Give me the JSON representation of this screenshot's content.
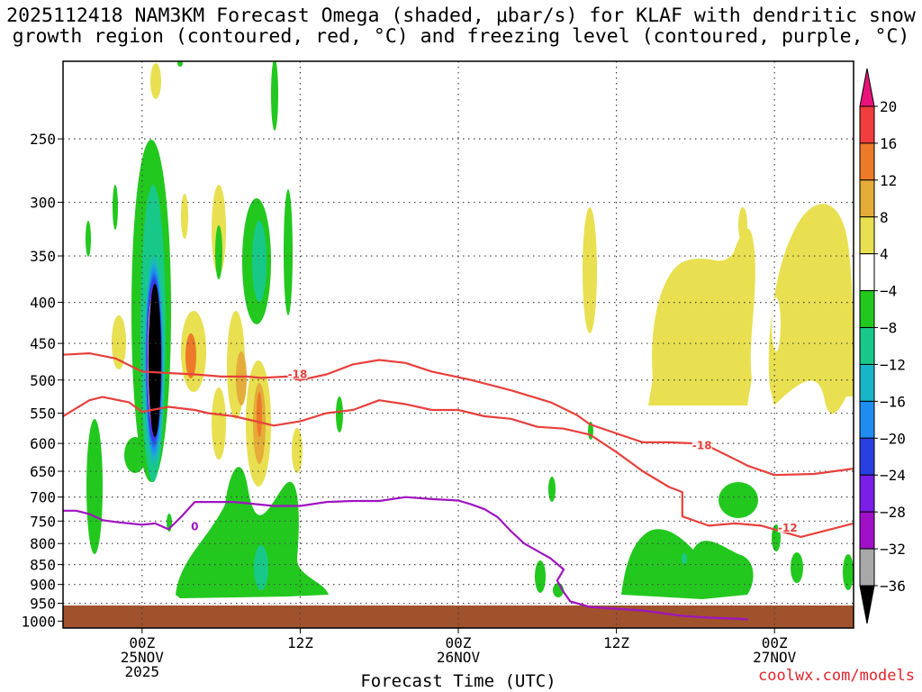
{
  "title": {
    "line1": "2025112418 NAM3KM Forecast Omega (shaded, μbar/s) for KLAF with dendritic snow",
    "line2": "growth region (contoured, red, °C) and freezing level (contoured, purple, °C)"
  },
  "credit": "coolwx.com/models",
  "chart_data": {
    "type": "heatmap",
    "xlabel": "Forecast Time (UTC)",
    "ylabel": "",
    "x_ticks": [
      {
        "label": "00Z",
        "sub": "25NOV",
        "sub2": "2025",
        "hour": 6
      },
      {
        "label": "12Z",
        "sub": "",
        "sub2": "",
        "hour": 18
      },
      {
        "label": "00Z",
        "sub": "26NOV",
        "sub2": "",
        "hour": 30
      },
      {
        "label": "12Z",
        "sub": "",
        "sub2": "",
        "hour": 42
      },
      {
        "label": "00Z",
        "sub": "27NOV",
        "sub2": "",
        "hour": 54
      }
    ],
    "xlim": [
      0,
      60
    ],
    "y_ticks": [
      250,
      300,
      350,
      400,
      450,
      500,
      550,
      600,
      650,
      700,
      750,
      800,
      850,
      900,
      950,
      1000
    ],
    "ylim_hPa": [
      200,
      1020
    ],
    "y_scale": "log-pressure",
    "grid": true,
    "colorbar": {
      "labels": [
        "20",
        "16",
        "12",
        "8",
        "4",
        "−4",
        "−8",
        "−12",
        "−16",
        "−20",
        "−24",
        "−28",
        "−32",
        "−36"
      ],
      "colors": [
        "#e8127a",
        "#f03c3c",
        "#ec7a28",
        "#e4ac38",
        "#e8e050",
        "#ffffff",
        "#22c81e",
        "#18c888",
        "#1ab4c8",
        "#1e8cf0",
        "#2840e0",
        "#7a1ee8",
        "#a010c8",
        "#a8a8a8",
        "#000000"
      ]
    },
    "contour_labels": [
      {
        "text": "-18",
        "color": "#e8403c"
      },
      {
        "text": "-18",
        "color": "#e8403c"
      },
      {
        "text": "-12",
        "color": "#e8403c"
      },
      {
        "text": "0",
        "color": "#a014c0"
      }
    ],
    "series": [
      {
        "name": "-18",
        "color": "#e8403c",
        "points": [
          [
            0,
            465
          ],
          [
            2,
            463
          ],
          [
            4,
            470
          ],
          [
            6,
            488
          ],
          [
            8,
            490
          ],
          [
            10,
            492
          ],
          [
            12,
            495
          ],
          [
            14,
            495
          ],
          [
            15,
            497
          ],
          [
            17,
            495
          ],
          [
            18,
            500
          ],
          [
            20,
            492
          ],
          [
            22,
            478
          ],
          [
            24,
            472
          ],
          [
            26,
            476
          ],
          [
            28,
            488
          ],
          [
            31,
            500
          ],
          [
            34,
            515
          ],
          [
            37,
            533
          ],
          [
            39,
            553
          ],
          [
            40,
            568
          ],
          [
            42,
            583
          ],
          [
            44,
            598
          ],
          [
            46,
            598
          ],
          [
            48,
            600
          ],
          [
            49,
            605
          ],
          [
            51,
            628
          ],
          [
            52,
            640
          ],
          [
            54,
            657
          ],
          [
            57,
            655
          ],
          [
            60,
            645
          ]
        ]
      },
      {
        "name": "-12",
        "color": "#e8403c",
        "points": [
          [
            0,
            555
          ],
          [
            2,
            530
          ],
          [
            3,
            525
          ],
          [
            5,
            533
          ],
          [
            6,
            548
          ],
          [
            8,
            540
          ],
          [
            10,
            545
          ],
          [
            11,
            550
          ],
          [
            13,
            555
          ],
          [
            16,
            570
          ],
          [
            18,
            563
          ],
          [
            20,
            550
          ],
          [
            22,
            545
          ],
          [
            24,
            530
          ],
          [
            26,
            536
          ],
          [
            28,
            545
          ],
          [
            30,
            545
          ],
          [
            32,
            555
          ],
          [
            34,
            559
          ],
          [
            36,
            572
          ],
          [
            38,
            575
          ],
          [
            40,
            585
          ],
          [
            42,
            615
          ],
          [
            44,
            650
          ],
          [
            46,
            680
          ],
          [
            47,
            690
          ],
          [
            47,
            740
          ],
          [
            49,
            760
          ],
          [
            51,
            755
          ],
          [
            53,
            760
          ],
          [
            56,
            785
          ],
          [
            58,
            770
          ],
          [
            60,
            755
          ]
        ]
      },
      {
        "name": "0",
        "color": "#a014c0",
        "points": [
          [
            0,
            728
          ],
          [
            1,
            728
          ],
          [
            2,
            735
          ],
          [
            3,
            748
          ],
          [
            4,
            752
          ],
          [
            6,
            758
          ],
          [
            7,
            755
          ],
          [
            8,
            768
          ],
          [
            9,
            740
          ],
          [
            10,
            710
          ],
          [
            13,
            710
          ],
          [
            16,
            718
          ],
          [
            18,
            718
          ],
          [
            20,
            710
          ],
          [
            22,
            708
          ],
          [
            24,
            708
          ],
          [
            26,
            700
          ],
          [
            28,
            704
          ],
          [
            30,
            707
          ],
          [
            31,
            715
          ],
          [
            32,
            725
          ],
          [
            33,
            742
          ],
          [
            34,
            772
          ],
          [
            35,
            800
          ],
          [
            37,
            835
          ],
          [
            38,
            862
          ],
          [
            37.5,
            890
          ],
          [
            38,
            920
          ],
          [
            38.5,
            945
          ],
          [
            40,
            960
          ],
          [
            42,
            965
          ],
          [
            44,
            970
          ],
          [
            47,
            985
          ],
          [
            49,
            990
          ],
          [
            51,
            993
          ],
          [
            52,
            995
          ]
        ]
      }
    ]
  }
}
